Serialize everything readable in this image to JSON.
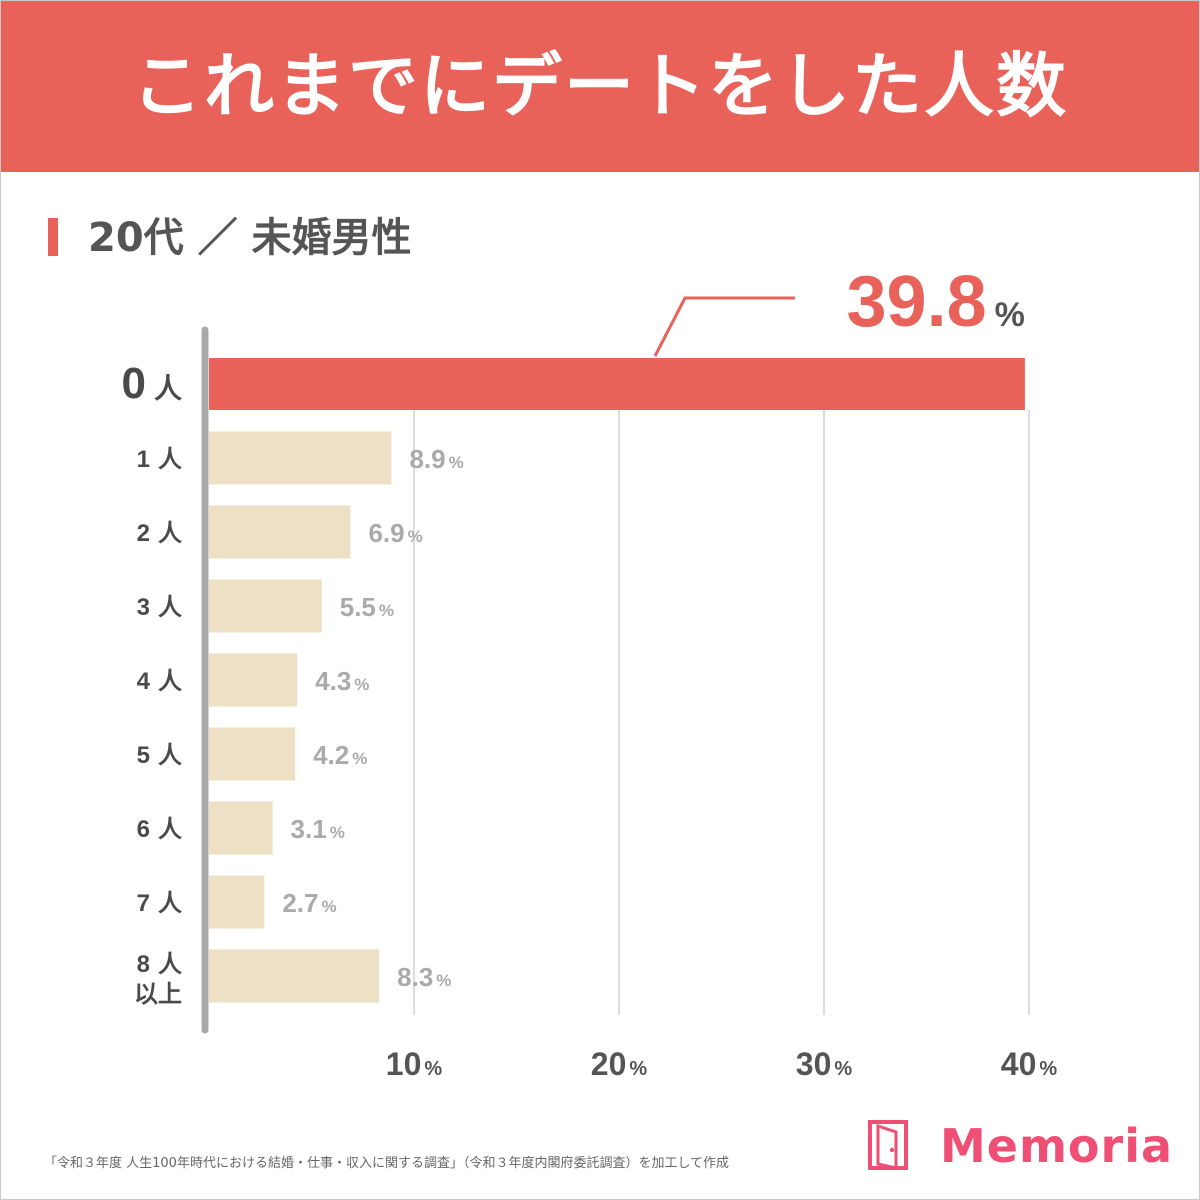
{
  "header": {
    "title": "これまでにデートをした人数"
  },
  "subtitle": "20代 ／ 未婚男性",
  "chart_data": {
    "type": "bar",
    "orientation": "horizontal",
    "title": "これまでにデートをした人数",
    "subtitle": "20代 ／ 未婚男性",
    "categories": [
      {
        "num": "0",
        "unit": "人",
        "extra": ""
      },
      {
        "num": "1",
        "unit": "人",
        "extra": ""
      },
      {
        "num": "2",
        "unit": "人",
        "extra": ""
      },
      {
        "num": "3",
        "unit": "人",
        "extra": ""
      },
      {
        "num": "4",
        "unit": "人",
        "extra": ""
      },
      {
        "num": "5",
        "unit": "人",
        "extra": ""
      },
      {
        "num": "6",
        "unit": "人",
        "extra": ""
      },
      {
        "num": "7",
        "unit": "人",
        "extra": ""
      },
      {
        "num": "8",
        "unit": "人",
        "extra": "以上"
      }
    ],
    "values": [
      39.8,
      8.9,
      6.9,
      5.5,
      4.3,
      4.2,
      3.1,
      2.7,
      8.3
    ],
    "value_labels": [
      "39.8",
      "8.9",
      "6.9",
      "5.5",
      "4.3",
      "4.2",
      "3.1",
      "2.7",
      "8.3"
    ],
    "value_suffix": "%",
    "highlight_index": 0,
    "xlim": [
      0,
      40
    ],
    "x_ticks": [
      {
        "value": 10,
        "label": "10"
      },
      {
        "value": 20,
        "label": "20"
      },
      {
        "value": 30,
        "label": "30"
      },
      {
        "value": 40,
        "label": "40"
      }
    ],
    "tick_suffix": "%",
    "grid": true,
    "colors": {
      "highlight": "#e8625a",
      "bar": "#ede0c4",
      "value_label": "#aaaaaa",
      "axis": "#a8a8a8",
      "grid": "#dddddd",
      "category_label": "#4a4a4a"
    }
  },
  "footer": {
    "source": "「令和３年度 人生100年時代における結婚・仕事・収入に関する調査」（令和３年度内閣府委託調査）を加工して作成",
    "brand": "Memoria",
    "brand_icon": "door-icon",
    "brand_color": "#ef4f74"
  }
}
